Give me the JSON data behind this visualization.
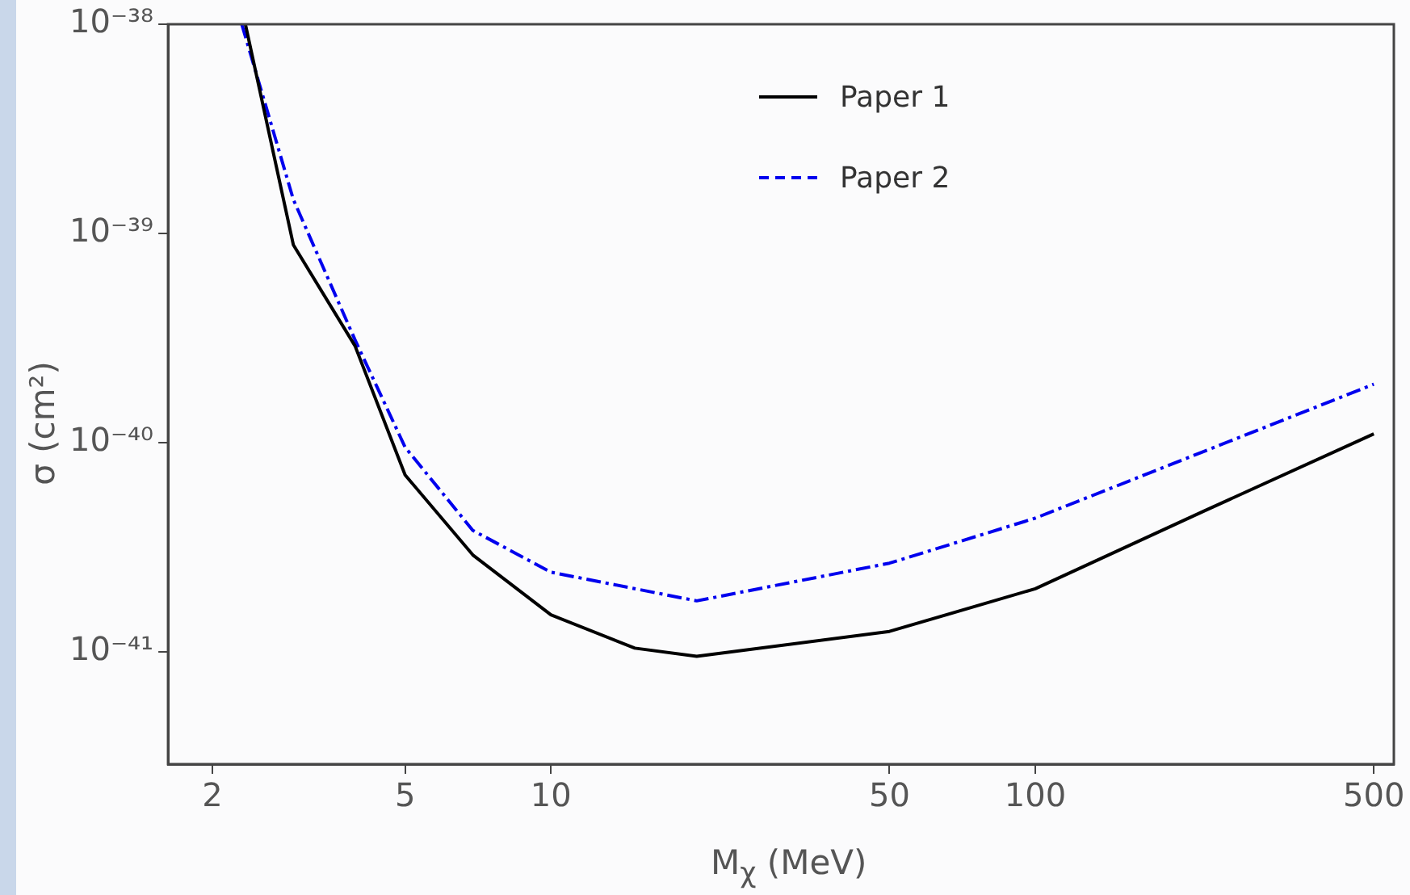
{
  "chart_data": {
    "type": "line",
    "xlabel": "M$_{χ}$ (MeV)",
    "ylabel": "σ (cm²)",
    "log": "xy",
    "xlim": [
      1.62,
      550
    ],
    "ylim": [
      2.9e-42,
      1e-38
    ],
    "xticks": [
      2,
      5,
      10,
      50,
      100,
      500
    ],
    "yticks": [
      {
        "value": 1e-41,
        "label": "10⁻⁴¹"
      },
      {
        "value": 1e-40,
        "label": "10⁻⁴⁰"
      },
      {
        "value": 1e-39,
        "label": "10⁻³⁹"
      },
      {
        "value": 1e-38,
        "label": "10⁻³⁸"
      }
    ],
    "grid": false,
    "legend": "top",
    "marker": "none",
    "series": [
      {
        "name": "Paper 1",
        "color": "#000000",
        "line_style": "solid",
        "x": [
          2.34,
          2.94,
          3.94,
          5,
          6.9,
          10,
          14.9,
          20,
          50,
          100,
          225,
          500
        ],
        "values": [
          1e-38,
          8.8e-40,
          2.9e-40,
          7e-41,
          2.9e-41,
          1.5e-41,
          1.04e-41,
          9.5e-42,
          1.25e-41,
          2e-41,
          4.75e-41,
          1.1e-40
        ]
      },
      {
        "name": "Paper 2",
        "color": "#0000ee",
        "line_style": "dashed",
        "x": [
          2.3,
          2.94,
          3.94,
          5,
          6.9,
          10,
          20,
          50,
          100,
          500
        ],
        "values": [
          1e-38,
          1.45e-39,
          3.1e-40,
          9.5e-41,
          3.8e-41,
          2.4e-41,
          1.75e-41,
          2.65e-41,
          4.35e-41,
          1.9e-40
        ]
      }
    ]
  }
}
